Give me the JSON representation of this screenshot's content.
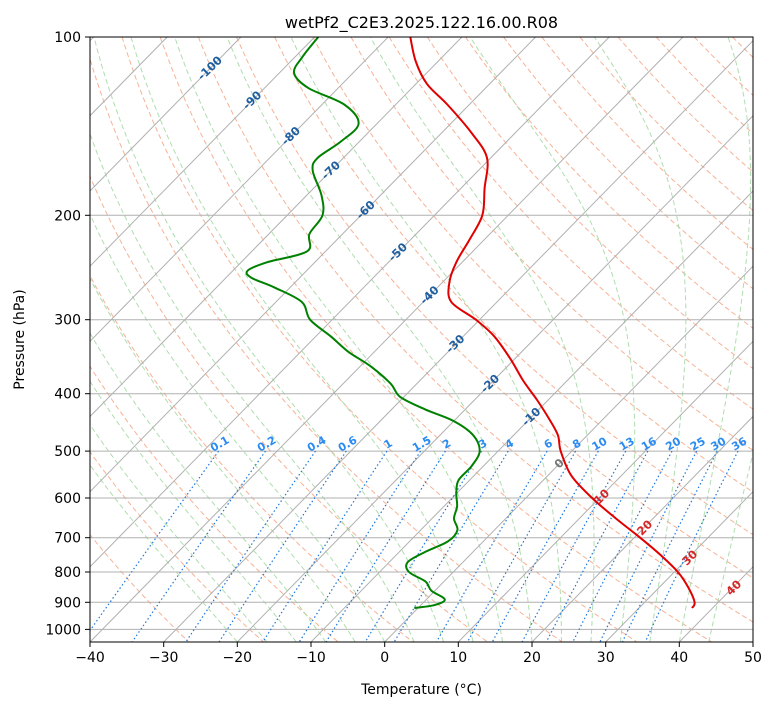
{
  "chart_data": {
    "type": "line",
    "title": "wetPf2_C2E3.2025.122.16.00.R08",
    "xlabel": "Temperature (°C)",
    "ylabel": "Pressure (hPa)",
    "xlim": [
      -40,
      50
    ],
    "ylim": [
      1050,
      100
    ],
    "y_scale": "log",
    "x_ticks": [
      -40,
      -30,
      -20,
      -10,
      0,
      10,
      20,
      30,
      40,
      50
    ],
    "y_ticks": [
      100,
      200,
      300,
      400,
      500,
      600,
      700,
      800,
      900,
      1000
    ],
    "grid": true,
    "colors": {
      "temperature": "#e00000",
      "dewpoint": "#008000",
      "isotherm": "#b0b0b0",
      "dry_adiabat": "#f4a582",
      "moist_adiabat": "#a6d9a6",
      "mixing_ratio": "#1f77dd",
      "mixing_label": "#2a8bf2",
      "iso_label": "#1f5fa0",
      "dry_label": "#d62728"
    },
    "series": [
      {
        "role": "temperature",
        "points": [
          [
            37.2,
            920
          ],
          [
            36.8,
            900
          ],
          [
            34.0,
            850
          ],
          [
            30.5,
            800
          ],
          [
            26.0,
            750
          ],
          [
            20.8,
            700
          ],
          [
            15.0,
            650
          ],
          [
            9.0,
            600
          ],
          [
            3.2,
            550
          ],
          [
            -1.5,
            500
          ],
          [
            -4.0,
            470
          ],
          [
            -7.5,
            440
          ],
          [
            -11.5,
            410
          ],
          [
            -16.0,
            380
          ],
          [
            -20.5,
            350
          ],
          [
            -25.8,
            320
          ],
          [
            -30.5,
            300
          ],
          [
            -36.2,
            280
          ],
          [
            -39.0,
            260
          ],
          [
            -40.8,
            240
          ],
          [
            -42.0,
            220
          ],
          [
            -43.5,
            200
          ],
          [
            -46.8,
            180
          ],
          [
            -50.5,
            160
          ],
          [
            -56.0,
            145
          ],
          [
            -63.0,
            130
          ],
          [
            -68.5,
            120
          ],
          [
            -73.0,
            110
          ],
          [
            -77.0,
            100
          ]
        ]
      },
      {
        "role": "dewpoint",
        "points": [
          [
            -0.5,
            920
          ],
          [
            1.8,
            910
          ],
          [
            2.5,
            890
          ],
          [
            -0.5,
            860
          ],
          [
            -2.5,
            830
          ],
          [
            -6.0,
            800
          ],
          [
            -7.5,
            770
          ],
          [
            -6.5,
            740
          ],
          [
            -4.8,
            710
          ],
          [
            -5.0,
            680
          ],
          [
            -7.0,
            650
          ],
          [
            -8.2,
            620
          ],
          [
            -10.0,
            590
          ],
          [
            -11.5,
            560
          ],
          [
            -11.6,
            530
          ],
          [
            -12.5,
            500
          ],
          [
            -15.5,
            470
          ],
          [
            -20.0,
            445
          ],
          [
            -25.5,
            425
          ],
          [
            -30.5,
            405
          ],
          [
            -33.5,
            385
          ],
          [
            -38.5,
            360
          ],
          [
            -43.5,
            340
          ],
          [
            -48.0,
            320
          ],
          [
            -53.0,
            300
          ],
          [
            -56.5,
            280
          ],
          [
            -62.0,
            265
          ],
          [
            -66.5,
            255
          ],
          [
            -68.0,
            248
          ],
          [
            -66.5,
            240
          ],
          [
            -62.5,
            230
          ],
          [
            -64.5,
            215
          ],
          [
            -65.2,
            200
          ],
          [
            -68.0,
            185
          ],
          [
            -72.5,
            168
          ],
          [
            -73.5,
            160
          ],
          [
            -72.5,
            150
          ],
          [
            -72.5,
            140
          ],
          [
            -77.0,
            130
          ],
          [
            -84.0,
            122
          ],
          [
            -88.0,
            115
          ],
          [
            -89.0,
            108
          ],
          [
            -89.5,
            100
          ]
        ]
      }
    ],
    "isotherm_labels": [
      "-100",
      "-90",
      "-80",
      "-70",
      "-60",
      "-50",
      "-40",
      "-30",
      "-20",
      "-10",
      "0"
    ],
    "dry_adiabat_labels": [
      "10",
      "20",
      "30",
      "40"
    ],
    "mixing_ratio_labels": [
      "0.1",
      "0.2",
      "0.4",
      "0.6",
      "1",
      "1.5",
      "2",
      "3",
      "4",
      "6",
      "8",
      "10",
      "13",
      "16",
      "20",
      "25",
      "30",
      "36"
    ]
  }
}
